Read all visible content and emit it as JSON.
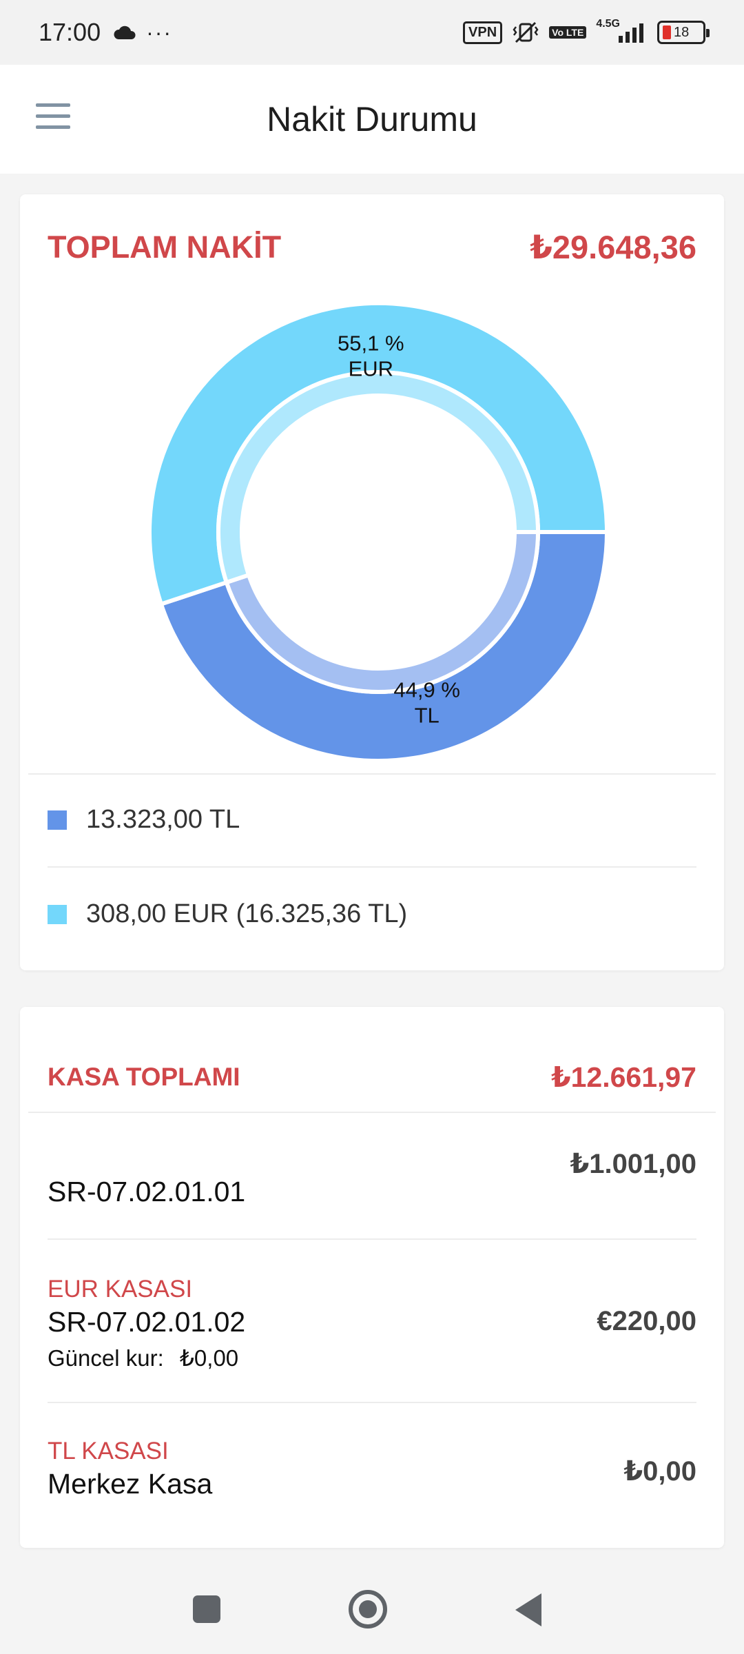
{
  "status_bar": {
    "time": "17:00",
    "dots": "···",
    "vpn": "VPN",
    "volte": "Vo LTE",
    "network": "4.5G",
    "battery": "18",
    "icons": [
      "cloud-icon",
      "mute-vibrate-icon",
      "signal-icon",
      "battery-icon"
    ]
  },
  "app_bar": {
    "title": "Nakit Durumu",
    "menu_icon": "menu-icon"
  },
  "total_card": {
    "label": "TOPLAM NAKİT",
    "value": "₺29.648,36",
    "legend": [
      {
        "text": "13.323,00 TL",
        "color": "#6394e8"
      },
      {
        "text": "308,00 EUR (16.325,36 TL)",
        "color": "#73d7fb"
      }
    ]
  },
  "chart_data": {
    "type": "pie",
    "style": "donut",
    "slices": [
      {
        "label": "TL",
        "percent_label": "44,9 %",
        "value": 44.9,
        "color": "#6394e8",
        "inner_color": "#a4bff2"
      },
      {
        "label": "EUR",
        "percent_label": "55,1 %",
        "value": 55.1,
        "color": "#73d7fb",
        "inner_color": "#afe8fd"
      }
    ]
  },
  "kasa_card": {
    "label": "KASA TOPLAMI",
    "value": "₺12.661,97",
    "items": [
      {
        "type": "",
        "code": "SR-07.02.01.01",
        "rate_label": "",
        "rate_value": "",
        "amount": "₺1.001,00"
      },
      {
        "type": "EUR KASASI",
        "code": "SR-07.02.01.02",
        "rate_label": "Güncel kur:",
        "rate_value": "₺0,00",
        "amount": "€220,00"
      },
      {
        "type": "TL KASASI",
        "code": "Merkez Kasa",
        "rate_label": "",
        "rate_value": "",
        "amount": "₺0,00"
      }
    ]
  },
  "nav_bar": {
    "icons": [
      "recents-icon",
      "home-icon",
      "back-icon"
    ]
  },
  "colors": {
    "accent_red": "#d0474a",
    "tl_blue": "#6394e8",
    "eur_cyan": "#73d7fb"
  }
}
